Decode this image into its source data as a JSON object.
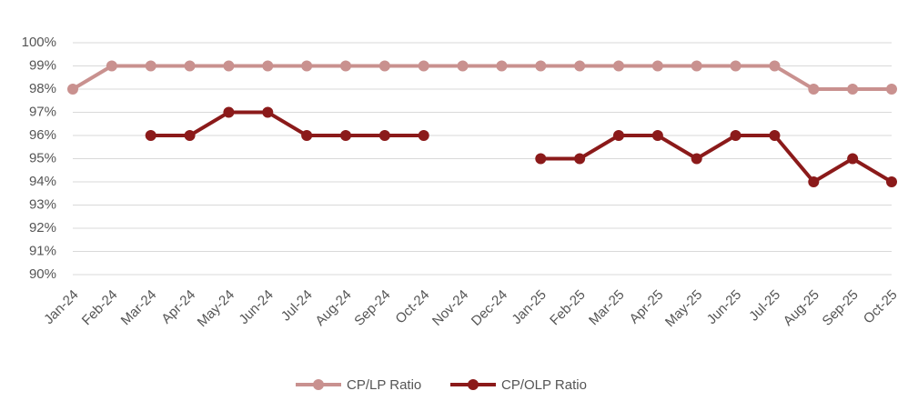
{
  "chart_data": {
    "type": "line",
    "categories": [
      "Jan-24",
      "Feb-24",
      "Mar-24",
      "Apr-24",
      "May-24",
      "Jun-24",
      "Jul-24",
      "Aug-24",
      "Sep-24",
      "Oct-24",
      "Nov-24",
      "Dec-24",
      "Jan-25",
      "Feb-25",
      "Mar-25",
      "Apr-25",
      "May-25",
      "Jun-25",
      "Jul-25",
      "Aug-25",
      "Sep-25",
      "Oct-25"
    ],
    "series": [
      {
        "name": "CP/LP Ratio",
        "color": "#c9918f",
        "values": [
          98,
          99,
          99,
          99,
          99,
          99,
          99,
          99,
          99,
          99,
          99,
          99,
          99,
          99,
          99,
          99,
          99,
          99,
          99,
          98,
          98,
          98
        ]
      },
      {
        "name": "CP/OLP Ratio",
        "color": "#8b1a1a",
        "values": [
          null,
          null,
          96,
          96,
          97,
          97,
          96,
          96,
          96,
          96,
          null,
          null,
          95,
          95,
          96,
          96,
          95,
          96,
          96,
          94,
          95,
          94
        ]
      }
    ],
    "ylim": [
      90,
      100
    ],
    "yticks": [
      {
        "value": 90,
        "label": "90%"
      },
      {
        "value": 91,
        "label": "91%"
      },
      {
        "value": 92,
        "label": "92%"
      },
      {
        "value": 93,
        "label": "93%"
      },
      {
        "value": 94,
        "label": "94%"
      },
      {
        "value": 95,
        "label": "95%"
      },
      {
        "value": 96,
        "label": "96%"
      },
      {
        "value": 97,
        "label": "97%"
      },
      {
        "value": 98,
        "label": "98%"
      },
      {
        "value": 99,
        "label": "99%"
      },
      {
        "value": 100,
        "label": "100%"
      }
    ],
    "grid": true,
    "legend": "bottom"
  }
}
